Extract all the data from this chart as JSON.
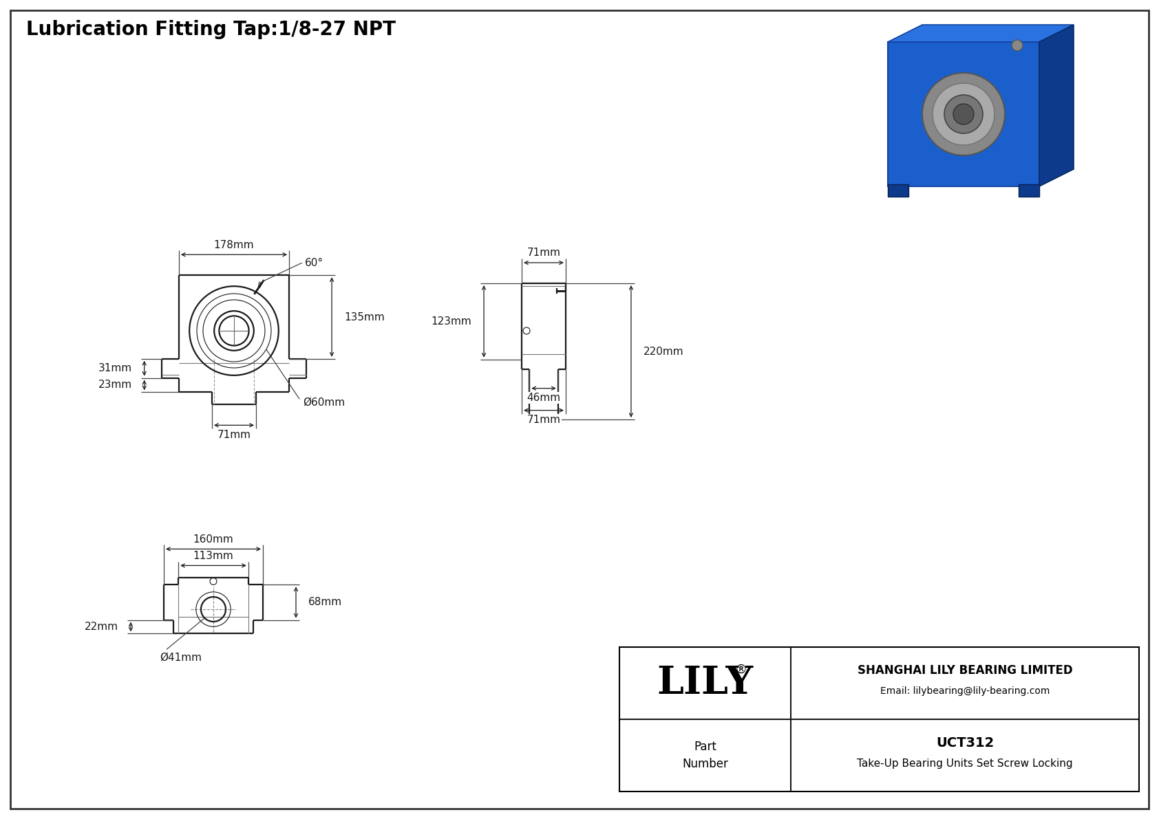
{
  "title": "Lubrication Fitting Tap:1/8-27 NPT",
  "line_color": "#1a1a1a",
  "company": "SHANGHAI LILY BEARING LIMITED",
  "email": "Email: lilybearing@lily-bearing.com",
  "part_label": "Part\nNumber",
  "part_number": "UCT312",
  "part_desc": "Take-Up Bearing Units Set Screw Locking",
  "brand": "LILY",
  "dims": {
    "width_top": "178mm",
    "height_right": "135mm",
    "height_left31": "31mm",
    "height_left23": "23mm",
    "width_slot": "71mm",
    "bore_dia": "Ø60mm",
    "side_height": "220mm",
    "side_width_top": "71mm",
    "side_height_upper": "123mm",
    "side_width_base": "71mm",
    "side_width_mid": "46mm",
    "bot_width_outer": "160mm",
    "bot_width_inner": "113mm",
    "bot_height": "68mm",
    "bot_dia": "Ø41mm",
    "bot_side_h": "22mm",
    "angle": "60°"
  }
}
